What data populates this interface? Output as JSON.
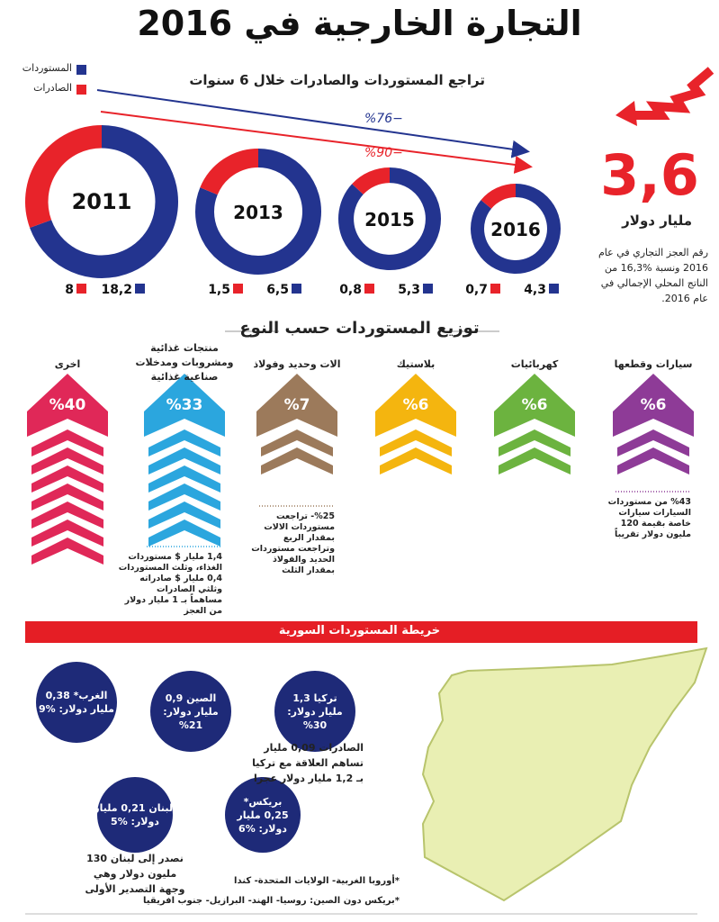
{
  "header": {
    "title": "التجارة الخارجية في 2016"
  },
  "legend": [
    {
      "name": "المستوردات",
      "color": "#23348f"
    },
    {
      "name": "الصادرات",
      "color": "#e8232a"
    }
  ],
  "trade_decline": {
    "title": "تراجع المستوردات والصادرات خلال 6 سنوات",
    "imports_change": "%76−",
    "exports_change": "%90−",
    "years": [
      "2011",
      "2013",
      "2015",
      "2016"
    ],
    "imports": [
      18.2,
      6.5,
      5.3,
      4.3
    ],
    "imports_labels": [
      "18,2",
      "6,5",
      "5,3",
      "4,3"
    ],
    "exports": [
      8,
      1.5,
      0.8,
      0.7
    ],
    "exports_labels": [
      "8",
      "1,5",
      "0,8",
      "0,7"
    ]
  },
  "deficit": {
    "value": 3.6,
    "label": "3,6",
    "unit": "مليار دولار",
    "text": "رقم العجز التجاري في عام 2016 ونسبة %16,3 من الناتج المحلي الإجمالي في عام 2016."
  },
  "import_types": {
    "title": "توزيع المستوردات حسب النوع",
    "items": [
      {
        "name": "سيارات وقطعها",
        "value": 6,
        "label": "%6",
        "color": "#8e3b97",
        "note": [
          "%43 من مستوردات",
          "السيارات سيارات",
          "خاصة بقيمة 120",
          "مليون دولار تقريباً"
        ]
      },
      {
        "name": "كهربائيات",
        "value": 6,
        "label": "%6",
        "color": "#6cb33f"
      },
      {
        "name": "بلاستيك",
        "value": 6,
        "label": "%6",
        "color": "#f4b50f"
      },
      {
        "name": "الات وحديد وفولاذ",
        "value": 7,
        "label": "%7",
        "color": "#9c7a5b",
        "note": [
          "%25- تراجعت",
          "مستوردات الالات",
          "بمقدار الربع",
          "وتراجعت مستوردات",
          "الحديد والفولاذ",
          "بمقدار الثلث"
        ]
      },
      {
        "name": "منتجات غذائية ومشروبات ومدخلات صناعية غذائية",
        "value": 33,
        "label": "%33",
        "color": "#2ba6de",
        "note": [
          "1,4 مليار $ مستوردات",
          "الغذاء، وثلث المستوردات",
          "0,4 مليار $ صادراته",
          "وثلثي الصادرات",
          "مساهماً بـ 1 مليار دولار",
          "من العجز"
        ]
      },
      {
        "name": "اخرى",
        "value": 40,
        "label": "%40",
        "color": "#e02858"
      }
    ]
  },
  "import_map": {
    "title": "خريطة المستوردات السورية",
    "circles": [
      {
        "lines": [
          "تركيا 1,3",
          "مليار دولار:",
          "%30"
        ]
      },
      {
        "lines": [
          "الصين 0,9",
          "مليار دولار:",
          "%21"
        ]
      },
      {
        "lines": [
          "الغرب* 0,38",
          "مليار دولار: %9"
        ]
      },
      {
        "lines": [
          "بريكس*",
          "0,25 مليار",
          "دولار: %6"
        ]
      },
      {
        "lines": [
          "لبنان 0,21 مليار",
          "دولار: %5"
        ]
      }
    ],
    "turkey_note": [
      "الصادرات 0,09 مليار",
      "تساهم العلاقة مع تركيا",
      "بـ 1,2 مليار دولار عجزا"
    ],
    "lebanon_note": [
      "نصدر إلى لبنان 130",
      "مليون دولار وهي",
      "وجهة التصدير الأولى"
    ],
    "footnotes": [
      "*أوروبا الغربية- الولايات المتحدة- كندا",
      "*بريكس دون الصين: روسيا- الهند- البرازيل- جنوب افريقيا"
    ]
  }
}
